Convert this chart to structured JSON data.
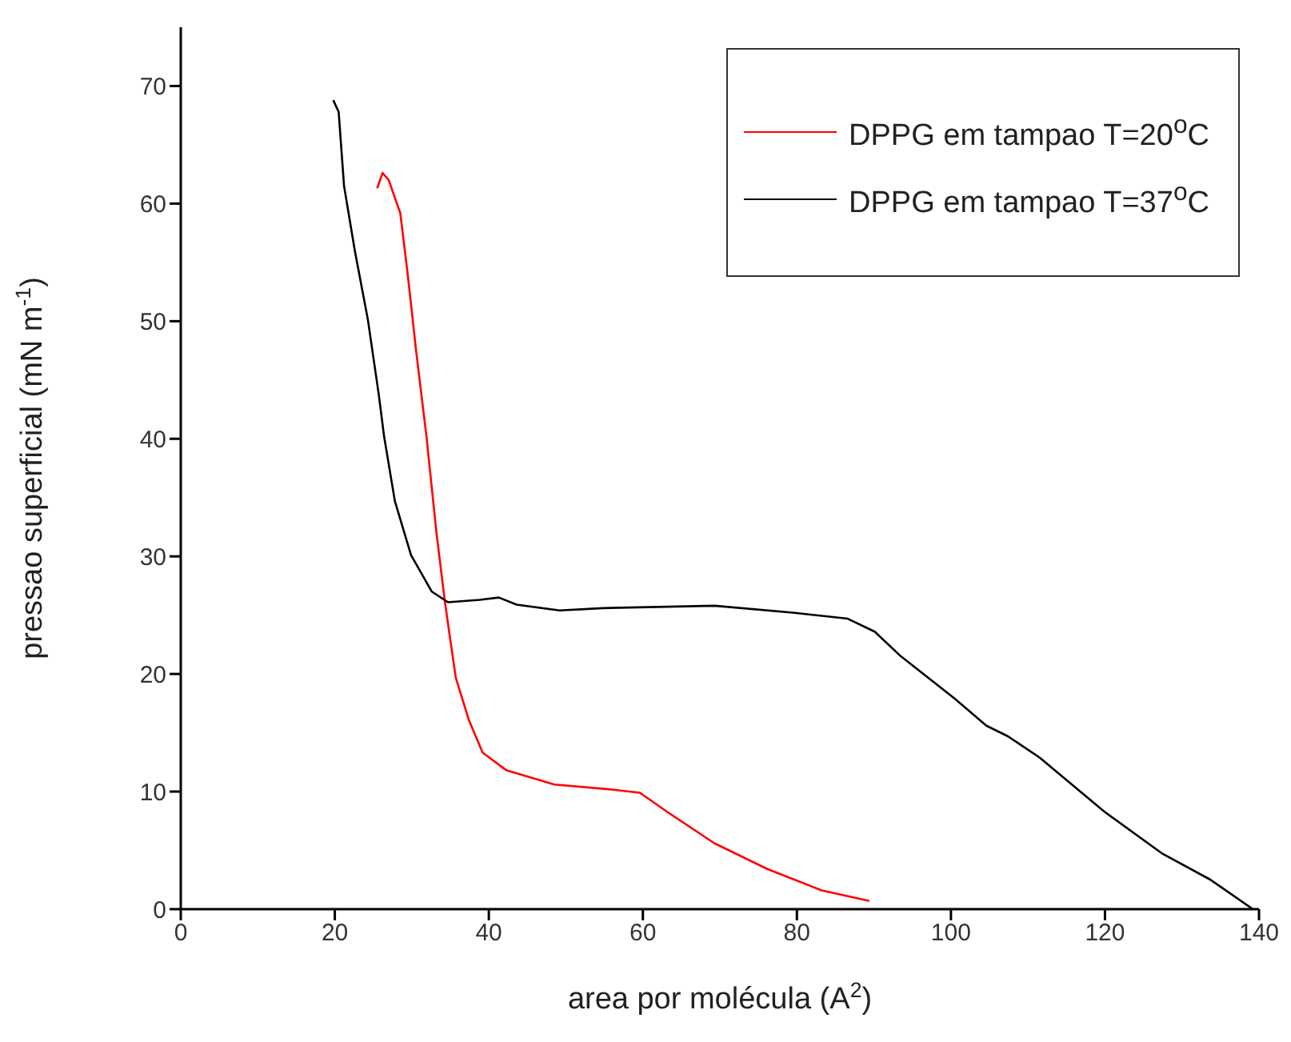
{
  "chart_data": {
    "type": "line",
    "xlabel": "area por molécula (A$^{2}$)",
    "ylabel": "pressao superficial (mN m$^{-1}$)",
    "xlim": [
      0,
      140
    ],
    "xticks": [
      0,
      20,
      40,
      60,
      80,
      100,
      120,
      140
    ],
    "ylim": [
      0,
      75
    ],
    "yticks": [
      0,
      10,
      20,
      30,
      40,
      50,
      60,
      70
    ],
    "grid": false,
    "legend": "top right",
    "marker": "none",
    "line_style": "solid",
    "series": [
      {
        "name": "DPPG em tampao T=20$^{o}$C",
        "color": "#ff0000",
        "x": [
          25.5,
          26.2,
          27,
          27.8,
          28.5,
          29.5,
          30.5,
          31.9,
          33.2,
          34.3,
          35.7,
          37.4,
          39.2,
          42.3,
          48.5,
          55.5,
          59.6,
          63.1,
          69.3,
          76.2,
          83.2,
          89.4
        ],
        "values": [
          61.3,
          62.6,
          62,
          60.5,
          59.2,
          53.8,
          47.8,
          40.2,
          32,
          26.1,
          19.7,
          16.1,
          13.3,
          11.8,
          10.6,
          10.2,
          9.9,
          8.3,
          5.6,
          3.4,
          1.6,
          0.7
        ]
      },
      {
        "name": "DPPG em tampao T=37$^{o}$C",
        "color": "#000000",
        "x": [
          19.8,
          20.5,
          21.2,
          22.6,
          24.3,
          25.7,
          26.4,
          27.8,
          29.9,
          32.6,
          34.7,
          38.8,
          41.3,
          43.6,
          49.2,
          54.8,
          69.3,
          79.7,
          86.6,
          90.1,
          93.5,
          100.5,
          104.6,
          107.4,
          111.5,
          119.9,
          127.5,
          133.7,
          139.2
        ],
        "values": [
          68.8,
          67.8,
          61.5,
          56,
          50.1,
          43.8,
          40.2,
          34.7,
          30.1,
          27,
          26.1,
          26.3,
          26.5,
          25.9,
          25.4,
          25.6,
          25.8,
          25.2,
          24.7,
          23.6,
          21.5,
          17.9,
          15.6,
          14.7,
          12.9,
          8.3,
          4.7,
          2.5,
          0
        ]
      }
    ]
  }
}
